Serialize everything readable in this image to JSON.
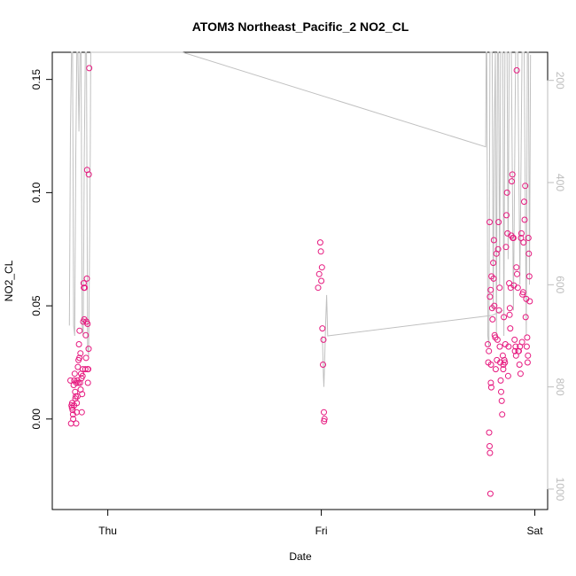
{
  "chart_data": {
    "type": "scatter",
    "title": "ATOM3 Northeast_Pacific_2 NO2_CL",
    "xlabel": "Date",
    "ylabel": "NO2_CL",
    "x_ticks": [
      {
        "label": "Thu",
        "day": 0
      },
      {
        "label": "Fri",
        "day": 1
      },
      {
        "label": "Sat",
        "day": 2
      }
    ],
    "xlim_days": [
      -0.26,
      2.06
    ],
    "ylim": [
      -0.04,
      0.162
    ],
    "y_ticks": [
      0.0,
      0.05,
      0.1,
      0.15
    ],
    "y_tick_labels": [
      "0.00",
      "0.05",
      "0.10",
      "0.15"
    ],
    "y2_ticks": [
      200,
      400,
      600,
      800,
      1000
    ],
    "y2_tick_labels": [
      "200",
      "400",
      "600",
      "800",
      "1000"
    ],
    "y2lim": [
      1040,
      145
    ],
    "point_color": "#e6197f",
    "line_color": "#c0c0c0",
    "series": [
      {
        "type": "scatter",
        "points": [
          [
            -0.175,
            0.017
          ],
          [
            -0.172,
            -0.002
          ],
          [
            -0.17,
            0.006
          ],
          [
            -0.168,
            0.005
          ],
          [
            -0.167,
            0.007
          ],
          [
            -0.165,
            0.004
          ],
          [
            -0.163,
            0.002
          ],
          [
            -0.162,
            0.0
          ],
          [
            -0.16,
            0.015
          ],
          [
            -0.158,
            0.006
          ],
          [
            -0.157,
            0.017
          ],
          [
            -0.155,
            0.02
          ],
          [
            -0.153,
            0.012
          ],
          [
            -0.152,
            0.009
          ],
          [
            -0.15,
            0.01
          ],
          [
            -0.148,
            -0.002
          ],
          [
            -0.147,
            0.016
          ],
          [
            -0.146,
            0.003
          ],
          [
            -0.145,
            0.007
          ],
          [
            -0.143,
            0.017
          ],
          [
            -0.142,
            0.01
          ],
          [
            -0.14,
            0.023
          ],
          [
            -0.138,
            0.016
          ],
          [
            -0.137,
            0.026
          ],
          [
            -0.135,
            0.033
          ],
          [
            -0.133,
            0.027
          ],
          [
            -0.132,
            0.039
          ],
          [
            -0.13,
            0.016
          ],
          [
            -0.128,
            0.029
          ],
          [
            -0.127,
            0.013
          ],
          [
            -0.125,
            0.02
          ],
          [
            -0.123,
            0.018
          ],
          [
            -0.122,
            0.003
          ],
          [
            -0.12,
            0.011
          ],
          [
            -0.118,
            0.019
          ],
          [
            -0.117,
            0.022
          ],
          [
            -0.115,
            0.043
          ],
          [
            -0.113,
            0.06
          ],
          [
            -0.112,
            0.058
          ],
          [
            -0.11,
            0.044
          ],
          [
            -0.108,
            0.058
          ],
          [
            -0.105,
            0.022
          ],
          [
            -0.103,
            0.037
          ],
          [
            -0.102,
            0.027
          ],
          [
            -0.1,
            0.043
          ],
          [
            -0.098,
            0.062
          ],
          [
            -0.097,
            0.11
          ],
          [
            -0.095,
            0.042
          ],
          [
            -0.094,
            0.022
          ],
          [
            -0.093,
            0.016
          ],
          [
            -0.092,
            0.022
          ],
          [
            -0.09,
            0.031
          ],
          [
            -0.089,
            0.108
          ],
          [
            -0.087,
            0.155
          ],
          [
            0.985,
            0.058
          ],
          [
            0.99,
            0.064
          ],
          [
            0.995,
            0.078
          ],
          [
            0.998,
            0.074
          ],
          [
            1.0,
            0.061
          ],
          [
            1.003,
            0.067
          ],
          [
            1.005,
            0.04
          ],
          [
            1.008,
            0.024
          ],
          [
            1.01,
            0.035
          ],
          [
            1.012,
            0.003
          ],
          [
            1.013,
            -0.001
          ],
          [
            1.015,
            0.0
          ],
          [
            1.78,
            0.033
          ],
          [
            1.782,
            0.025
          ],
          [
            1.785,
            0.03
          ],
          [
            1.788,
            0.087
          ],
          [
            1.79,
            0.054
          ],
          [
            1.793,
            0.057
          ],
          [
            1.795,
            0.024
          ],
          [
            1.797,
            0.063
          ],
          [
            1.8,
            0.049
          ],
          [
            1.802,
            0.044
          ],
          [
            1.805,
            0.069
          ],
          [
            1.807,
            0.062
          ],
          [
            1.808,
            0.079
          ],
          [
            1.81,
            0.05
          ],
          [
            1.812,
            0.037
          ],
          [
            1.815,
            0.036
          ],
          [
            1.817,
            0.022
          ],
          [
            1.82,
            0.073
          ],
          [
            1.822,
            0.026
          ],
          [
            1.825,
            0.035
          ],
          [
            1.828,
            0.075
          ],
          [
            1.83,
            0.087
          ],
          [
            1.832,
            0.048
          ],
          [
            1.835,
            0.058
          ],
          [
            1.836,
            0.032
          ],
          [
            1.838,
            0.025
          ],
          [
            1.84,
            0.017
          ],
          [
            1.842,
            0.012
          ],
          [
            1.845,
            0.008
          ],
          [
            1.847,
            0.002
          ],
          [
            1.85,
            0.028
          ],
          [
            1.852,
            0.022
          ],
          [
            1.853,
            0.024
          ],
          [
            1.855,
            0.045
          ],
          [
            1.857,
            0.026
          ],
          [
            1.86,
            0.025
          ],
          [
            1.862,
            0.033
          ],
          [
            1.865,
            0.076
          ],
          [
            1.867,
            0.09
          ],
          [
            1.87,
            0.1
          ],
          [
            1.872,
            0.082
          ],
          [
            1.875,
            0.019
          ],
          [
            1.877,
            0.032
          ],
          [
            1.88,
            0.06
          ],
          [
            1.882,
            0.046
          ],
          [
            1.883,
            0.049
          ],
          [
            1.885,
            0.04
          ],
          [
            1.887,
            0.058
          ],
          [
            1.89,
            0.081
          ],
          [
            1.892,
            0.105
          ],
          [
            1.895,
            0.108
          ],
          [
            1.897,
            0.08
          ],
          [
            1.9,
            0.08
          ],
          [
            1.902,
            0.059
          ],
          [
            1.905,
            0.035
          ],
          [
            1.907,
            0.03
          ],
          [
            1.91,
            0.032
          ],
          [
            1.912,
            0.028
          ],
          [
            1.914,
            0.067
          ],
          [
            1.915,
            0.154
          ],
          [
            1.917,
            0.064
          ],
          [
            1.92,
            0.058
          ],
          [
            1.923,
            0.03
          ],
          [
            1.925,
            0.03
          ],
          [
            1.928,
            0.024
          ],
          [
            1.93,
            0.032
          ],
          [
            1.933,
            0.02
          ],
          [
            1.935,
            0.08
          ],
          [
            1.937,
            0.082
          ],
          [
            1.94,
            0.034
          ],
          [
            1.942,
            0.055
          ],
          [
            1.945,
            0.056
          ],
          [
            1.947,
            0.078
          ],
          [
            1.95,
            0.096
          ],
          [
            1.952,
            0.088
          ],
          [
            1.955,
            0.103
          ],
          [
            1.957,
            0.045
          ],
          [
            1.96,
            0.053
          ],
          [
            1.962,
            0.032
          ],
          [
            1.964,
            0.036
          ],
          [
            1.966,
            0.025
          ],
          [
            1.968,
            0.028
          ],
          [
            1.97,
            0.08
          ],
          [
            1.972,
            0.073
          ],
          [
            1.974,
            0.063
          ],
          [
            1.976,
            0.052
          ],
          [
            1.786,
            -0.006
          ],
          [
            1.788,
            -0.012
          ],
          [
            1.79,
            -0.015
          ],
          [
            1.792,
            -0.033
          ],
          [
            1.794,
            0.016
          ],
          [
            1.796,
            0.014
          ]
        ]
      },
      {
        "type": "line",
        "axis": "right",
        "points": [
          [
            -0.18,
            680
          ],
          [
            -0.175,
            300
          ],
          [
            -0.17,
            145
          ],
          [
            -0.165,
            145
          ],
          [
            -0.16,
            680
          ],
          [
            -0.155,
            700
          ],
          [
            -0.15,
            350
          ],
          [
            -0.145,
            145
          ],
          [
            -0.14,
            145
          ],
          [
            -0.135,
            300
          ],
          [
            -0.13,
            145
          ],
          [
            -0.125,
            145
          ],
          [
            -0.12,
            680
          ],
          [
            -0.115,
            700
          ],
          [
            -0.11,
            350
          ],
          [
            -0.105,
            145
          ],
          [
            -0.1,
            145
          ],
          [
            -0.095,
            720
          ],
          [
            -0.09,
            740
          ],
          [
            -0.085,
            500
          ],
          [
            -0.082,
            330
          ],
          [
            -0.08,
            145
          ],
          [
            0.35,
            145
          ],
          [
            1.77,
            330
          ],
          [
            1.772,
            145
          ],
          [
            1.775,
            145
          ],
          [
            1.78,
            700
          ],
          [
            1.785,
            720
          ],
          [
            1.79,
            145
          ],
          [
            1.8,
            145
          ],
          [
            1.805,
            650
          ],
          [
            1.81,
            300
          ],
          [
            1.815,
            145
          ],
          [
            1.82,
            700
          ],
          [
            1.825,
            145
          ],
          [
            1.83,
            145
          ],
          [
            1.835,
            600
          ],
          [
            1.84,
            145
          ],
          [
            1.85,
            145
          ],
          [
            1.855,
            700
          ],
          [
            1.86,
            145
          ],
          [
            1.87,
            145
          ],
          [
            1.875,
            550
          ],
          [
            1.88,
            145
          ],
          [
            1.89,
            145
          ],
          [
            1.9,
            650
          ],
          [
            1.91,
            145
          ],
          [
            1.92,
            145
          ],
          [
            1.93,
            600
          ],
          [
            1.94,
            145
          ],
          [
            1.95,
            145
          ],
          [
            1.96,
            700
          ],
          [
            1.965,
            145
          ],
          [
            1.97,
            145
          ],
          [
            1.975,
            600
          ],
          [
            1.98,
            150
          ]
        ]
      },
      {
        "type": "line",
        "axis": "right",
        "points": [
          [
            1.005,
            700
          ],
          [
            1.01,
            780
          ],
          [
            1.012,
            800
          ],
          [
            1.015,
            760
          ],
          [
            1.02,
            680
          ],
          [
            1.025,
            620
          ],
          [
            1.03,
            700
          ],
          [
            1.8,
            660
          ],
          [
            1.85,
            650
          ]
        ]
      }
    ]
  }
}
